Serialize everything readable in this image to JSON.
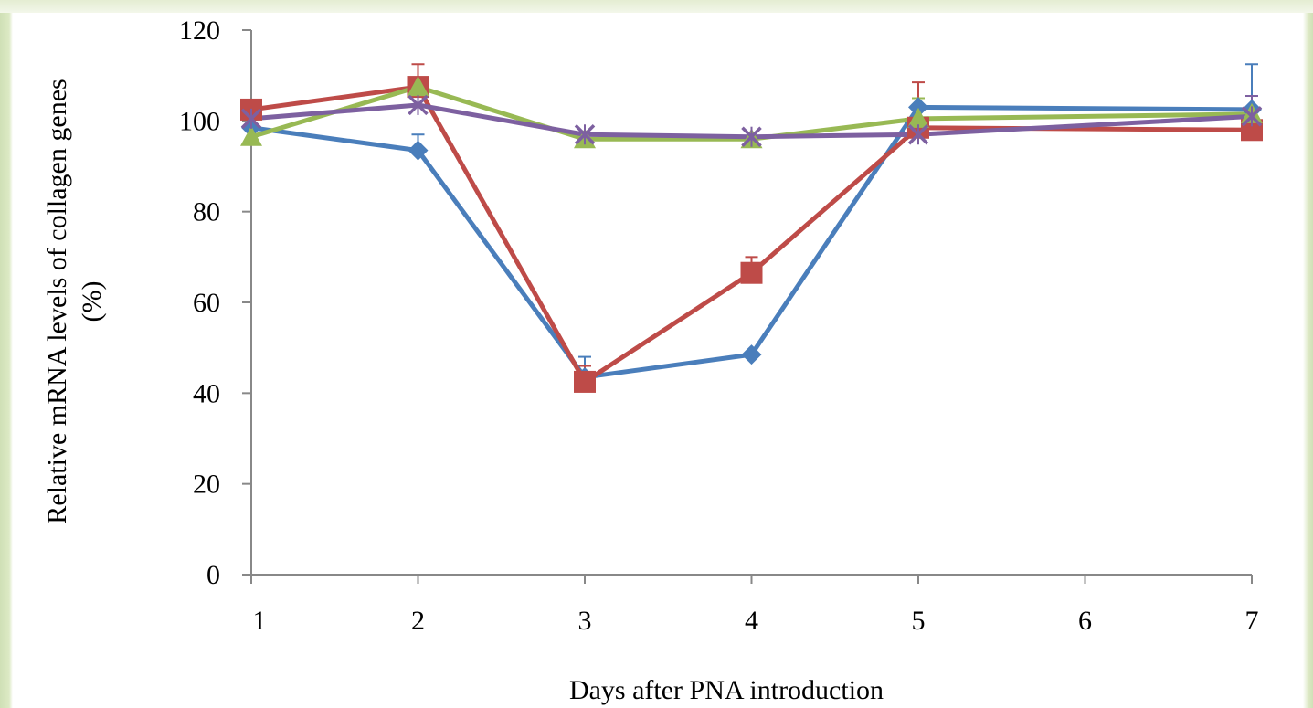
{
  "chart_data": {
    "type": "line",
    "title": "",
    "xlabel": "Days after PNA introduction",
    "ylabel_lines": [
      "Relative mRNA levels of collagen genes",
      "(%)"
    ],
    "x": [
      1,
      2,
      3,
      4,
      5,
      6,
      7
    ],
    "xticks": [
      "1",
      "2",
      "3",
      "4",
      "5",
      "6",
      "7"
    ],
    "ylim": [
      0,
      120
    ],
    "yticks": [
      "0",
      "20",
      "40",
      "60",
      "80",
      "100",
      "120"
    ],
    "grid": false,
    "legend": "none",
    "series": [
      {
        "color": "#4a7ebb",
        "marker": "diamond",
        "points": [
          {
            "x": 1,
            "y": 98.5
          },
          {
            "x": 2,
            "y": 93.5,
            "err": 3.5
          },
          {
            "x": 3,
            "y": 43.5,
            "err": 4.5
          },
          {
            "x": 4,
            "y": 48.5
          },
          {
            "x": 5,
            "y": 103.0
          },
          {
            "x": 7,
            "y": 102.5,
            "err": 10.0
          }
        ]
      },
      {
        "color": "#be4b48",
        "marker": "square",
        "points": [
          {
            "x": 1,
            "y": 102.5
          },
          {
            "x": 2,
            "y": 107.5,
            "err": 5.0
          },
          {
            "x": 3,
            "y": 42.5,
            "err": 3.5
          },
          {
            "x": 4,
            "y": 66.5,
            "err": 3.5
          },
          {
            "x": 5,
            "y": 98.5,
            "err": 10.0
          },
          {
            "x": 7,
            "y": 98.0
          }
        ]
      },
      {
        "color": "#98b954",
        "marker": "triangle",
        "points": [
          {
            "x": 1,
            "y": 96.5
          },
          {
            "x": 2,
            "y": 107.5
          },
          {
            "x": 3,
            "y": 96.0
          },
          {
            "x": 4,
            "y": 96.0
          },
          {
            "x": 5,
            "y": 100.5,
            "err": 4.5
          },
          {
            "x": 7,
            "y": 101.5
          }
        ]
      },
      {
        "color": "#7d60a0",
        "marker": "x",
        "points": [
          {
            "x": 1,
            "y": 100.5
          },
          {
            "x": 2,
            "y": 103.5
          },
          {
            "x": 3,
            "y": 97.0
          },
          {
            "x": 4,
            "y": 96.5
          },
          {
            "x": 5,
            "y": 97.0
          },
          {
            "x": 7,
            "y": 101.0,
            "err": 4.5
          }
        ]
      }
    ]
  }
}
